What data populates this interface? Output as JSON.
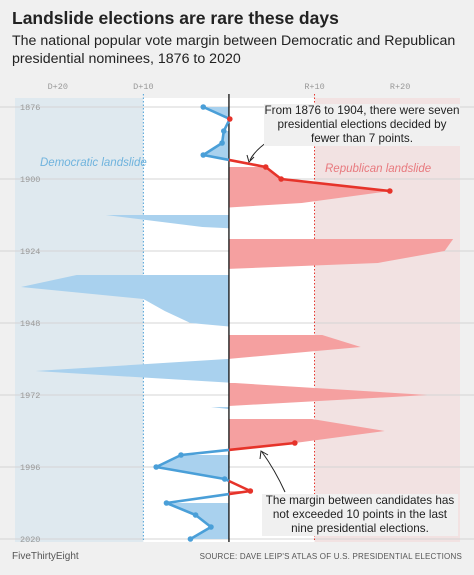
{
  "title": "Landslide elections are rare these days",
  "subtitle": "The national popular vote margin between Democratic and Republican presidential nominees, 1876 to 2020",
  "footer": {
    "brand": "FiveThirtyEight",
    "source": "SOURCE: DAVE LEIP'S ATLAS OF U.S. PRESIDENTIAL ELECTIONS"
  },
  "annotations": {
    "top": "From 1876 to 1904, there were seven presidential elections decided by fewer than 7 points.",
    "bottom": "The margin between candidates has not exceeded 10 points in the last nine presidential elections.",
    "dem_zone": "Democratic landslide",
    "rep_zone": "Republican landslide"
  },
  "colors": {
    "democratic": "#4a9fd8",
    "democratic_fill": "#a9d1ee",
    "republican": "#e6332a",
    "republican_fill": "#f5a0a0",
    "landslide_zone": "#ffffff",
    "dem_zone": "#dfe9ef",
    "rep_zone": "#f2e2e2"
  },
  "chart_data": {
    "type": "area",
    "orientation": "vertical",
    "x_axis": {
      "range": [
        -25,
        27
      ],
      "ticks": [
        -20,
        -10,
        10,
        20
      ],
      "tick_labels": [
        "D+20",
        "D+10",
        "R+10",
        "R+20"
      ],
      "position": "top"
    },
    "y_axis": {
      "range": [
        1873,
        2021
      ],
      "ticks": [
        1876,
        1900,
        1924,
        1948,
        1972,
        1996,
        2020
      ],
      "tick_labels": [
        "1876",
        "1900",
        "1924",
        "1948",
        "1972",
        "1996",
        "2020"
      ],
      "inverted": true
    },
    "landslide_threshold": 10,
    "series": [
      {
        "x_label": "Year",
        "years": [
          1876,
          1880,
          1884,
          1888,
          1892,
          1896,
          1900,
          1904,
          1908,
          1912,
          1916,
          1920,
          1924,
          1928,
          1932,
          1936,
          1940,
          1944,
          1948,
          1952,
          1956,
          1960,
          1964,
          1968,
          1972,
          1976,
          1980,
          1984,
          1988,
          1992,
          1996,
          2000,
          2004,
          2008,
          2012,
          2016,
          2020
        ],
        "margin": [
          -3.0,
          0.1,
          -0.6,
          -0.8,
          -3.0,
          4.3,
          6.1,
          18.8,
          8.5,
          -14.4,
          -3.1,
          26.2,
          25.2,
          17.4,
          -17.8,
          -24.3,
          -10.0,
          -7.5,
          -4.5,
          10.9,
          15.4,
          -0.2,
          -22.6,
          0.7,
          23.2,
          -2.1,
          9.7,
          18.2,
          7.7,
          -5.6,
          -8.5,
          -0.5,
          2.5,
          -7.3,
          -3.9,
          -2.1,
          -4.5
        ]
      }
    ]
  }
}
